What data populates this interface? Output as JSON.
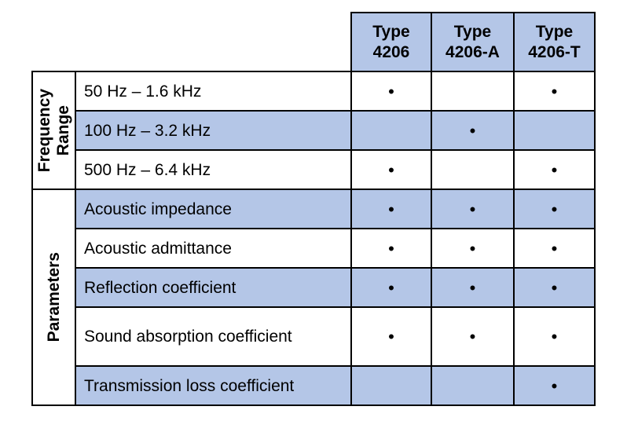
{
  "table": {
    "columns": [
      "Type\n4206",
      "Type\n4206-A",
      "Type\n4206-T"
    ],
    "groups": [
      {
        "label": "Frequency\nRange",
        "rows": [
          {
            "label": "50 Hz – 1.6 kHz",
            "cells": [
              "•",
              null,
              "•"
            ]
          },
          {
            "label": "100 Hz – 3.2 kHz",
            "cells": [
              null,
              "•",
              null
            ]
          },
          {
            "label": "500 Hz – 6.4 kHz",
            "cells": [
              "•",
              null,
              "•"
            ]
          }
        ]
      },
      {
        "label": "Parameters",
        "rows": [
          {
            "label": "Acoustic impedance",
            "cells": [
              "•",
              "•",
              "•"
            ]
          },
          {
            "label": "Acoustic admittance",
            "cells": [
              "•",
              "•",
              "•"
            ]
          },
          {
            "label": "Reflection coefficient",
            "cells": [
              "•",
              "•",
              "•"
            ]
          },
          {
            "label": "Sound absorption coefficient",
            "cells": [
              "•",
              "•",
              "•"
            ]
          },
          {
            "label": "Transmission loss coefficient",
            "cells": [
              null,
              null,
              "•"
            ]
          }
        ]
      }
    ]
  }
}
